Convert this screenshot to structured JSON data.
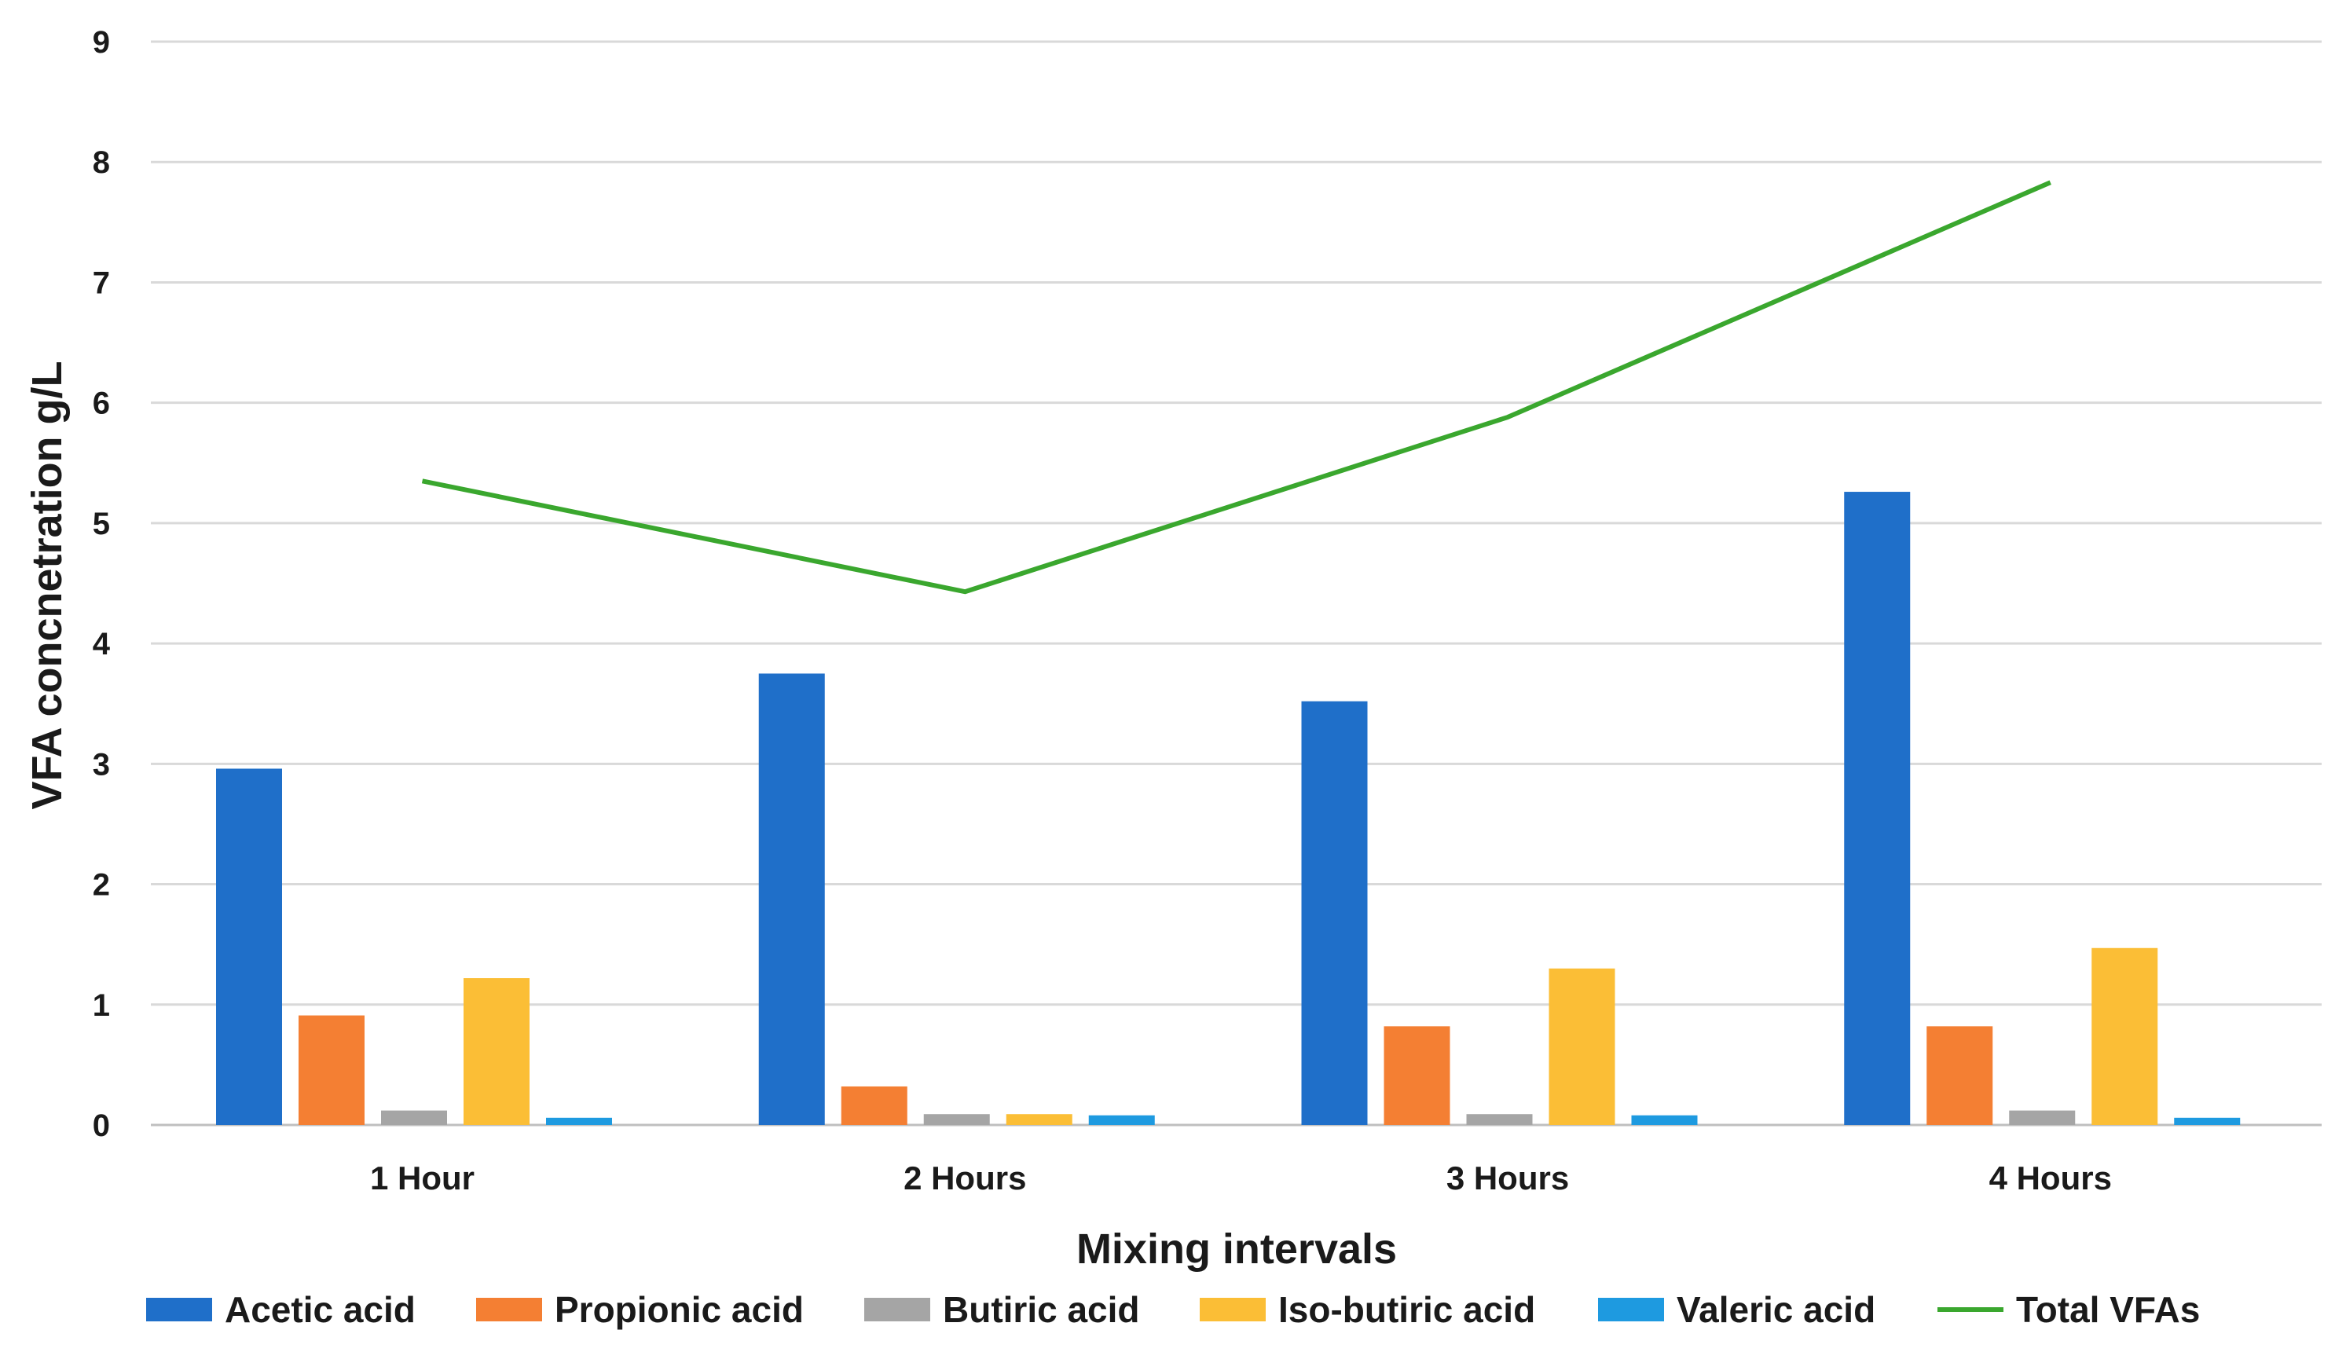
{
  "chart_data": {
    "type": "bar",
    "title": "",
    "xlabel": "Mixing intervals",
    "ylabel": "VFA concnetration g/L",
    "ylim": [
      0,
      9
    ],
    "yticks": [
      "0",
      "1",
      "2",
      "3",
      "4",
      "5",
      "6",
      "7",
      "8",
      "9"
    ],
    "grid": true,
    "legend_position": "bottom",
    "categories": [
      "1 Hour",
      "2 Hours",
      "3 Hours",
      "4 Hours"
    ],
    "series": [
      {
        "name": "Acetic acid",
        "kind": "bar",
        "color": "#1f6fc9",
        "values": [
          2.96,
          3.75,
          3.52,
          5.26
        ]
      },
      {
        "name": "Propionic acid",
        "kind": "bar",
        "color": "#f47f33",
        "values": [
          0.91,
          0.32,
          0.82,
          0.82
        ]
      },
      {
        "name": "Butiric acid",
        "kind": "bar",
        "color": "#a5a5a5",
        "values": [
          0.12,
          0.09,
          0.09,
          0.12
        ]
      },
      {
        "name": "Iso-butiric acid",
        "kind": "bar",
        "color": "#fbbe36",
        "values": [
          1.22,
          0.09,
          1.3,
          1.47
        ]
      },
      {
        "name": "Valeric acid",
        "kind": "bar",
        "color": "#1e9ae0",
        "values": [
          0.06,
          0.08,
          0.08,
          0.06
        ]
      },
      {
        "name": "Total VFAs",
        "kind": "line",
        "color": "#3aa72e",
        "values": [
          5.35,
          4.43,
          5.88,
          7.83
        ]
      }
    ]
  }
}
